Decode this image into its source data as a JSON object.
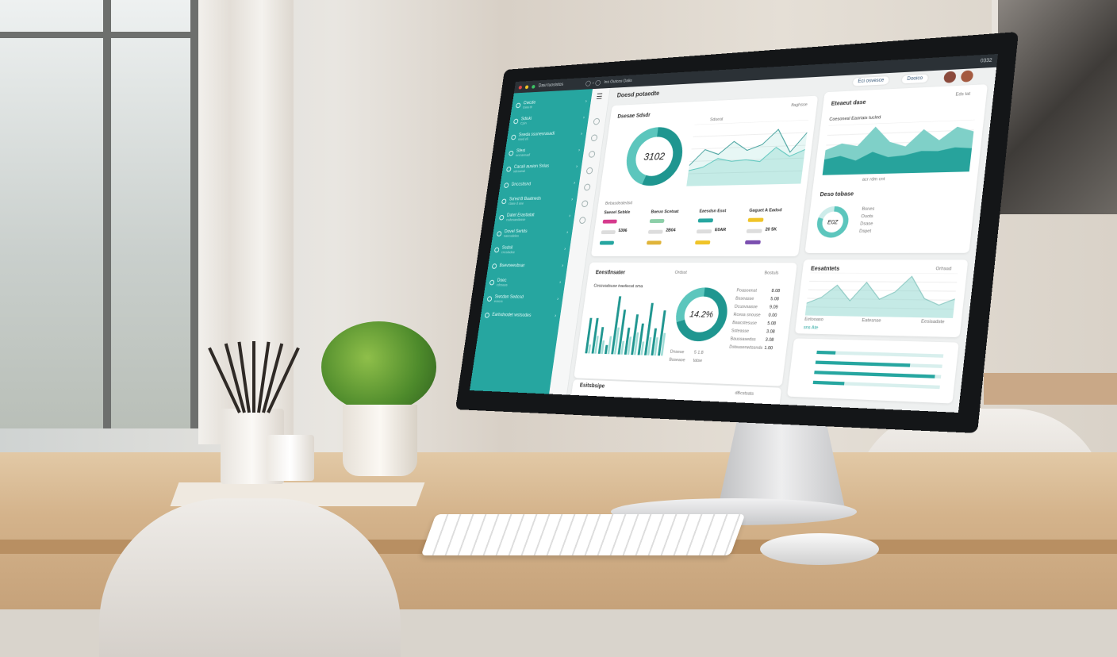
{
  "dashboard": {
    "window_title": "Dasi tuosistos",
    "search_text": "Ins Outcos Dalis",
    "page_title": "Doesd potaedte",
    "top_buttons": [
      "Eci osvesce",
      "Dooico"
    ],
    "clock": "0332",
    "sidebar": {
      "items": [
        {
          "label": "Cwcde",
          "sub": "Gwa tti"
        },
        {
          "label": "Sdiski",
          "sub": "Cpin"
        },
        {
          "label": "Sseda ssunesrasadi",
          "sub": "ssed ell"
        },
        {
          "label": "Sfesi",
          "sub": "ncrcasnadl"
        },
        {
          "label": "Cacali ausion Snlas",
          "sub": "sdcsanal"
        },
        {
          "label": "Dnccstisnd",
          "sub": ""
        },
        {
          "label": "Sa'ed B Baatneds",
          "sub": "clase d ase"
        },
        {
          "label": "Datet Erastiatat",
          "sub": "cudesaedasse"
        },
        {
          "label": "Dovel Sertds",
          "sub": "nancsdeles"
        },
        {
          "label": "Ssdsil",
          "sub": "cncsladee"
        },
        {
          "label": "Bsevneesbsar",
          "sub": ""
        },
        {
          "label": "Doec",
          "sub": "cdcsaos"
        },
        {
          "label": "Swcdan Sedcsd",
          "sub": "ecscrs"
        },
        {
          "label": "Earlsdsodet wstsodes",
          "sub": ""
        }
      ]
    },
    "card1": {
      "title": "Dsesae Sdsdr",
      "action": "Ifaghsse",
      "donut_value": "3102",
      "legend": "Sdueat",
      "legend_section": "Bebasdeatedsd",
      "columns": [
        {
          "title": "Saeoel Sebkle",
          "value": "5396",
          "color": "#d63a8d",
          "color2": "#26a6a0"
        },
        {
          "title": "Baeuo Scetsat",
          "value": "2B04",
          "color": "#8ccfa8",
          "color2": "#e0b43a"
        },
        {
          "title": "Eaesdsn Esst",
          "value": "E0AR",
          "color": "#26a6a0",
          "color2": "#f0c428"
        },
        {
          "title": "Gaguet A Eadsd",
          "value": "20 5K",
          "color": "#f0c428",
          "color2": "#7b4fb0"
        }
      ]
    },
    "card2": {
      "title": "Eteaeut dase",
      "action": "Eds tat",
      "subtitle": "Coesonesl Eaoriais tucled",
      "legend": "acr rdm cnt"
    },
    "card3": {
      "title": "Deso tobase",
      "donut_value": "E0Z",
      "rows": [
        "Bsnes",
        "Ouots",
        "Dsase",
        "Dspet"
      ]
    },
    "card4": {
      "title": "Eeestlnsater",
      "action": "Ordsst",
      "action2": "Bostuls",
      "subtitle": "Cessvadsuse trastiscat oma",
      "donut_value": "14.2%",
      "rows": [
        [
          "Poasoenst",
          "8.08"
        ],
        [
          "Bsseasse",
          "5.08"
        ],
        [
          "Dcusvsasse",
          "9.09"
        ],
        [
          "Rcesa snouse",
          "0.00"
        ],
        [
          "Baacstesuse",
          "5.08"
        ],
        [
          "Ssteasse",
          "3.08"
        ],
        [
          "Baussasedss",
          "3.08"
        ],
        [
          "Dstsusenwtssnds",
          "1.00"
        ]
      ],
      "footer": [
        [
          "Dnsese",
          "5 1.8"
        ],
        [
          "Bsseaoe",
          "tatse"
        ]
      ]
    },
    "card5": {
      "title": "Eesatntets",
      "action": "Orhsad",
      "labels": [
        "Eetooaso",
        "Eatesnse",
        "Eesisadste"
      ],
      "legend": "sns Ate"
    },
    "card6": {
      "title": "Esitsbsipe",
      "action": "dBcstsats"
    },
    "progress": [
      0.15,
      0.75,
      0.95,
      0.25
    ],
    "colors": {
      "teal": "#26a6a0",
      "dark": "#2b3136"
    }
  },
  "chart_data": [
    {
      "type": "pie",
      "values": [
        55,
        45
      ],
      "center_label": "3102"
    },
    {
      "type": "line",
      "series": [
        {
          "values": [
            2,
            3.5,
            3,
            4.2,
            3.3,
            3.8,
            5.2,
            3,
            4.8
          ]
        },
        {
          "values": [
            1.5,
            1.8,
            2.6,
            2.3,
            2.4,
            2.2,
            3.5,
            2.6,
            3.2
          ]
        }
      ]
    },
    {
      "type": "area",
      "series": [
        {
          "values": [
            4,
            5,
            4.5,
            7.5,
            5,
            4.2,
            6.8,
            5,
            7,
            6.2
          ]
        },
        {
          "values": [
            2.5,
            3,
            2.2,
            3.5,
            2.6,
            2.8,
            3.4,
            3.3,
            3.8,
            3.6
          ]
        }
      ]
    },
    {
      "type": "bar",
      "values": [
        4,
        4,
        3,
        1,
        6.5,
        5,
        3,
        4.5,
        3.5,
        5.8,
        3,
        5
      ],
      "values2": [
        1,
        2,
        1.5,
        2,
        3,
        1.5,
        2,
        2.5,
        1.5,
        2,
        2,
        2.5
      ]
    },
    {
      "type": "pie",
      "values": [
        70,
        30
      ],
      "center_label": "14.2%"
    },
    {
      "type": "area",
      "series": [
        {
          "values": [
            2,
            3,
            5,
            2.5,
            5.5,
            2.8,
            4,
            6.5,
            3,
            2,
            3
          ]
        }
      ]
    }
  ]
}
